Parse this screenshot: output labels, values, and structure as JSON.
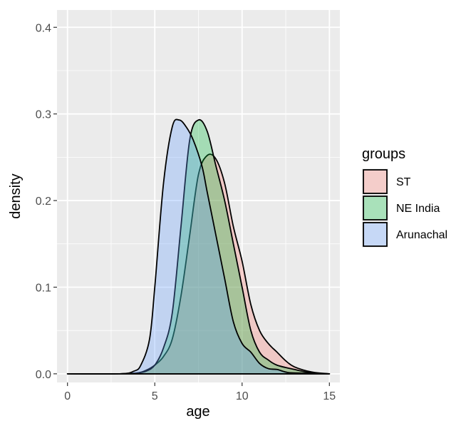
{
  "chart_data": {
    "type": "area",
    "title": "",
    "xlabel": "age",
    "ylabel": "density",
    "xlim": [
      -0.6,
      15.6
    ],
    "ylim": [
      -0.01,
      0.42
    ],
    "x_ticks": [
      0,
      5,
      10,
      15
    ],
    "y_ticks": [
      0.0,
      0.1,
      0.2,
      0.3,
      0.4
    ],
    "x_tick_labels": [
      "0",
      "5",
      "10",
      "15"
    ],
    "y_tick_labels": [
      "0.0",
      "0.1",
      "0.2",
      "0.3",
      "0.4"
    ],
    "grid": true,
    "legend": {
      "title": "groups",
      "position": "right",
      "entries": [
        "ST",
        "NE India",
        "Arunachal"
      ]
    },
    "series": [
      {
        "name": "ST",
        "color": "#F8766D",
        "points": [
          [
            0,
            0
          ],
          [
            3,
            0
          ],
          [
            4,
            0.001
          ],
          [
            4.5,
            0.004
          ],
          [
            5,
            0.01
          ],
          [
            5.5,
            0.02
          ],
          [
            6,
            0.04
          ],
          [
            6.5,
            0.09
          ],
          [
            7,
            0.16
          ],
          [
            7.5,
            0.23
          ],
          [
            8,
            0.252
          ],
          [
            8.5,
            0.248
          ],
          [
            9,
            0.22
          ],
          [
            9.5,
            0.17
          ],
          [
            10,
            0.13
          ],
          [
            10.5,
            0.08
          ],
          [
            11,
            0.05
          ],
          [
            11.5,
            0.035
          ],
          [
            12,
            0.025
          ],
          [
            12.5,
            0.015
          ],
          [
            13,
            0.008
          ],
          [
            14,
            0.002
          ],
          [
            15,
            0
          ]
        ]
      },
      {
        "name": "NE India",
        "color": "#00BA38",
        "points": [
          [
            0,
            0
          ],
          [
            3,
            0
          ],
          [
            4,
            0.001
          ],
          [
            4.5,
            0.003
          ],
          [
            5,
            0.01
          ],
          [
            5.5,
            0.03
          ],
          [
            6,
            0.07
          ],
          [
            6.5,
            0.17
          ],
          [
            7,
            0.27
          ],
          [
            7.5,
            0.293
          ],
          [
            8,
            0.28
          ],
          [
            8.5,
            0.24
          ],
          [
            9,
            0.2
          ],
          [
            9.5,
            0.15
          ],
          [
            10,
            0.1
          ],
          [
            10.5,
            0.05
          ],
          [
            11,
            0.025
          ],
          [
            11.5,
            0.016
          ],
          [
            12,
            0.01
          ],
          [
            13,
            0.005
          ],
          [
            14,
            0.001
          ],
          [
            15,
            0
          ]
        ]
      },
      {
        "name": "Arunachal",
        "color": "#619CFF",
        "points": [
          [
            0,
            0
          ],
          [
            3,
            0
          ],
          [
            3.8,
            0.003
          ],
          [
            4.2,
            0.01
          ],
          [
            4.7,
            0.04
          ],
          [
            5,
            0.1
          ],
          [
            5.5,
            0.22
          ],
          [
            6,
            0.285
          ],
          [
            6.4,
            0.293
          ],
          [
            6.8,
            0.285
          ],
          [
            7.2,
            0.27
          ],
          [
            7.7,
            0.24
          ],
          [
            8,
            0.21
          ],
          [
            8.5,
            0.16
          ],
          [
            9,
            0.11
          ],
          [
            9.5,
            0.06
          ],
          [
            10,
            0.035
          ],
          [
            10.5,
            0.025
          ],
          [
            11,
            0.012
          ],
          [
            11.5,
            0.006
          ],
          [
            12,
            0.005
          ],
          [
            12.5,
            0.002
          ],
          [
            13,
            0.001
          ],
          [
            15,
            0
          ]
        ]
      }
    ]
  }
}
